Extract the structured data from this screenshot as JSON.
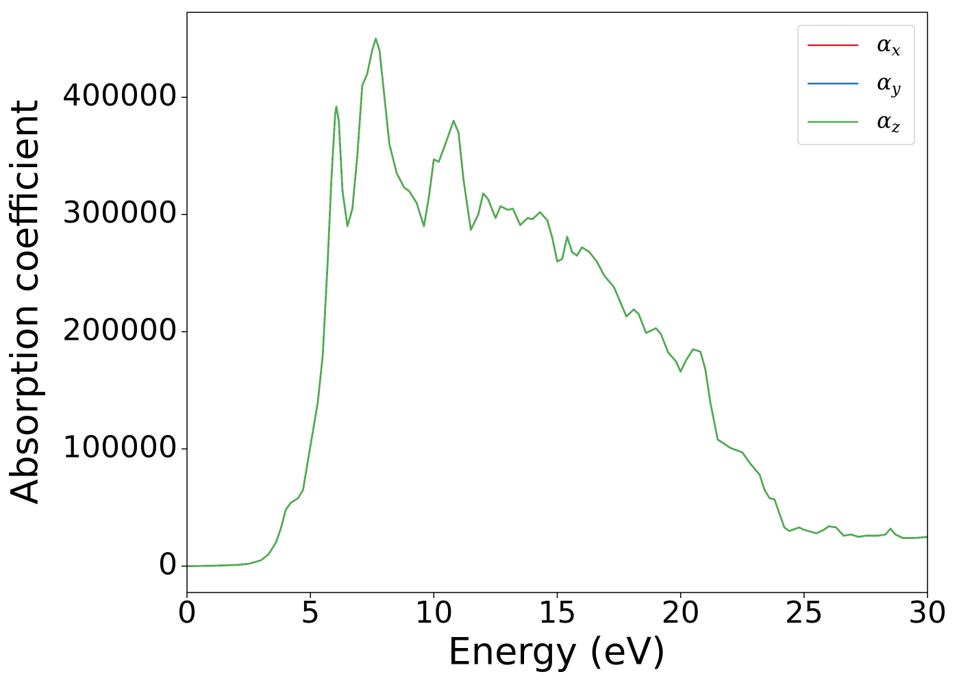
{
  "chart_data": {
    "type": "line",
    "xlabel": "Energy (eV)",
    "ylabel": "Absorption coefficient",
    "x": [
      0,
      1,
      2,
      2.5,
      3,
      3.3,
      3.6,
      3.8,
      4.0,
      4.2,
      4.5,
      4.7,
      4.9,
      5.1,
      5.3,
      5.5,
      5.7,
      5.85,
      6.0,
      6.05,
      6.15,
      6.3,
      6.5,
      6.7,
      6.9,
      7.1,
      7.3,
      7.5,
      7.65,
      7.8,
      8.0,
      8.2,
      8.5,
      8.8,
      9.0,
      9.3,
      9.6,
      9.8,
      10.0,
      10.2,
      10.5,
      10.8,
      11.0,
      11.2,
      11.5,
      11.8,
      12.0,
      12.2,
      12.5,
      12.7,
      13.0,
      13.2,
      13.5,
      13.8,
      14.0,
      14.3,
      14.6,
      14.8,
      15.0,
      15.2,
      15.4,
      15.6,
      15.8,
      16.0,
      16.3,
      16.6,
      16.9,
      17.3,
      17.8,
      18.1,
      18.3,
      18.6,
      19.0,
      19.2,
      19.5,
      19.8,
      20.0,
      20.2,
      20.5,
      20.8,
      21.0,
      21.2,
      21.5,
      21.8,
      22.0,
      22.5,
      22.8,
      23.2,
      23.4,
      23.6,
      23.8,
      24.0,
      24.2,
      24.4,
      24.8,
      25.0,
      25.5,
      25.8,
      26.0,
      26.3,
      26.6,
      26.9,
      27.2,
      27.5,
      28.0,
      28.3,
      28.5,
      28.7,
      29.0,
      29.5,
      30.0
    ],
    "series": [
      {
        "name": "αx",
        "color": "#d62728",
        "values": [
          0,
          300,
          1000,
          2000,
          5000,
          10000,
          20000,
          32000,
          48000,
          54000,
          58000,
          65000,
          90000,
          115000,
          140000,
          180000,
          260000,
          330000,
          385000,
          392000,
          380000,
          320000,
          290000,
          305000,
          350000,
          410000,
          420000,
          440000,
          450000,
          440000,
          400000,
          360000,
          335000,
          323000,
          320000,
          310000,
          290000,
          315000,
          347000,
          345000,
          362000,
          380000,
          370000,
          330000,
          287000,
          300000,
          318000,
          313000,
          297000,
          307000,
          304000,
          305000,
          291000,
          297000,
          296000,
          302000,
          295000,
          280000,
          260000,
          262000,
          281000,
          268000,
          265000,
          272000,
          268000,
          260000,
          248000,
          238000,
          213000,
          219000,
          215000,
          199000,
          203000,
          198000,
          182000,
          175000,
          166000,
          175000,
          185000,
          183000,
          168000,
          140000,
          108000,
          104000,
          101000,
          97000,
          88000,
          78000,
          65000,
          58000,
          57000,
          45000,
          33000,
          30000,
          33000,
          31000,
          28000,
          31000,
          34000,
          33000,
          26000,
          27000,
          25000,
          26000,
          26000,
          27000,
          32000,
          27000,
          24000,
          24000,
          25000
        ]
      },
      {
        "name": "αy",
        "color": "#1f77b4",
        "values": [
          0,
          300,
          1000,
          2000,
          5000,
          10000,
          20000,
          32000,
          48000,
          54000,
          58000,
          65000,
          90000,
          115000,
          140000,
          180000,
          260000,
          330000,
          385000,
          392000,
          380000,
          320000,
          290000,
          305000,
          350000,
          410000,
          420000,
          440000,
          450000,
          440000,
          400000,
          360000,
          335000,
          323000,
          320000,
          310000,
          290000,
          315000,
          347000,
          345000,
          362000,
          380000,
          370000,
          330000,
          287000,
          300000,
          318000,
          313000,
          297000,
          307000,
          304000,
          305000,
          291000,
          297000,
          296000,
          302000,
          295000,
          280000,
          260000,
          262000,
          281000,
          268000,
          265000,
          272000,
          268000,
          260000,
          248000,
          238000,
          213000,
          219000,
          215000,
          199000,
          203000,
          198000,
          182000,
          175000,
          166000,
          175000,
          185000,
          183000,
          168000,
          140000,
          108000,
          104000,
          101000,
          97000,
          88000,
          78000,
          65000,
          58000,
          57000,
          45000,
          33000,
          30000,
          33000,
          31000,
          28000,
          31000,
          34000,
          33000,
          26000,
          27000,
          25000,
          26000,
          26000,
          27000,
          32000,
          27000,
          24000,
          24000,
          25000
        ]
      },
      {
        "name": "αz",
        "color": "#4daf4a",
        "values": [
          0,
          300,
          1000,
          2000,
          5000,
          10000,
          20000,
          32000,
          48000,
          54000,
          58000,
          65000,
          90000,
          115000,
          140000,
          180000,
          260000,
          330000,
          385000,
          392000,
          380000,
          320000,
          290000,
          305000,
          350000,
          410000,
          420000,
          440000,
          450000,
          440000,
          400000,
          360000,
          335000,
          323000,
          320000,
          310000,
          290000,
          315000,
          347000,
          345000,
          362000,
          380000,
          370000,
          330000,
          287000,
          300000,
          318000,
          313000,
          297000,
          307000,
          304000,
          305000,
          291000,
          297000,
          296000,
          302000,
          295000,
          280000,
          260000,
          262000,
          281000,
          268000,
          265000,
          272000,
          268000,
          260000,
          248000,
          238000,
          213000,
          219000,
          215000,
          199000,
          203000,
          198000,
          182000,
          175000,
          166000,
          175000,
          185000,
          183000,
          168000,
          140000,
          108000,
          104000,
          101000,
          97000,
          88000,
          78000,
          65000,
          58000,
          57000,
          45000,
          33000,
          30000,
          33000,
          31000,
          28000,
          31000,
          34000,
          33000,
          26000,
          27000,
          25000,
          26000,
          26000,
          27000,
          32000,
          27000,
          24000,
          24000,
          25000
        ]
      }
    ],
    "xlim": [
      0,
      30
    ],
    "xticks": [
      0,
      5,
      10,
      15,
      20,
      25,
      30
    ],
    "ylim": [
      -22500,
      472500
    ],
    "yticks": [
      0,
      100000,
      200000,
      300000,
      400000
    ],
    "grid": false,
    "legend": "upper right"
  }
}
